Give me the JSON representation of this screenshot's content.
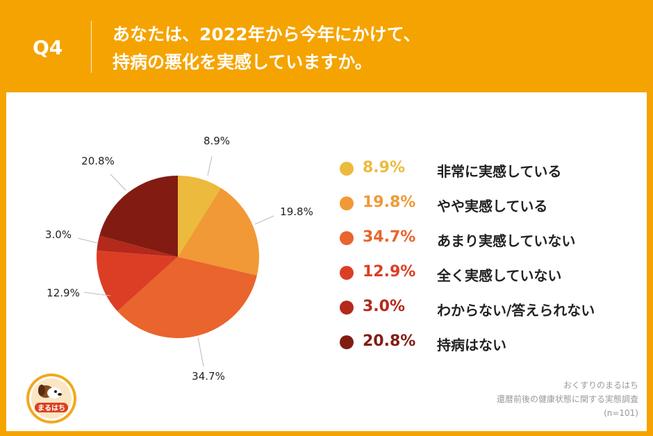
{
  "header": {
    "question_number": "Q4",
    "title_line1": "あなたは、2022年から今年にかけて、",
    "title_line2": "持病の悪化を実感していますか。"
  },
  "chart_data": {
    "type": "pie",
    "slices": [
      {
        "label": "非常に実感している",
        "value": 8.9,
        "display": "8.9%",
        "color": "#ecba3c"
      },
      {
        "label": "やや実感している",
        "value": 19.8,
        "display": "19.8%",
        "color": "#f19936"
      },
      {
        "label": "あまり実感していない",
        "value": 34.7,
        "display": "34.7%",
        "color": "#ea642d"
      },
      {
        "label": "全く実感していない",
        "value": 12.9,
        "display": "12.9%",
        "color": "#dc3e25"
      },
      {
        "label": "わからない/答えられない",
        "value": 3.0,
        "display": "3.0%",
        "color": "#b3291b"
      },
      {
        "label": "持病はない",
        "value": 20.8,
        "display": "20.8%",
        "color": "#821c13"
      }
    ],
    "legend_placement": "right"
  },
  "source": {
    "brand": "おくすりのまるはち",
    "survey": "還暦前後の健康状態に関する実態調査",
    "sample": "(n=101)"
  },
  "logo": {
    "text": "まるはち"
  }
}
